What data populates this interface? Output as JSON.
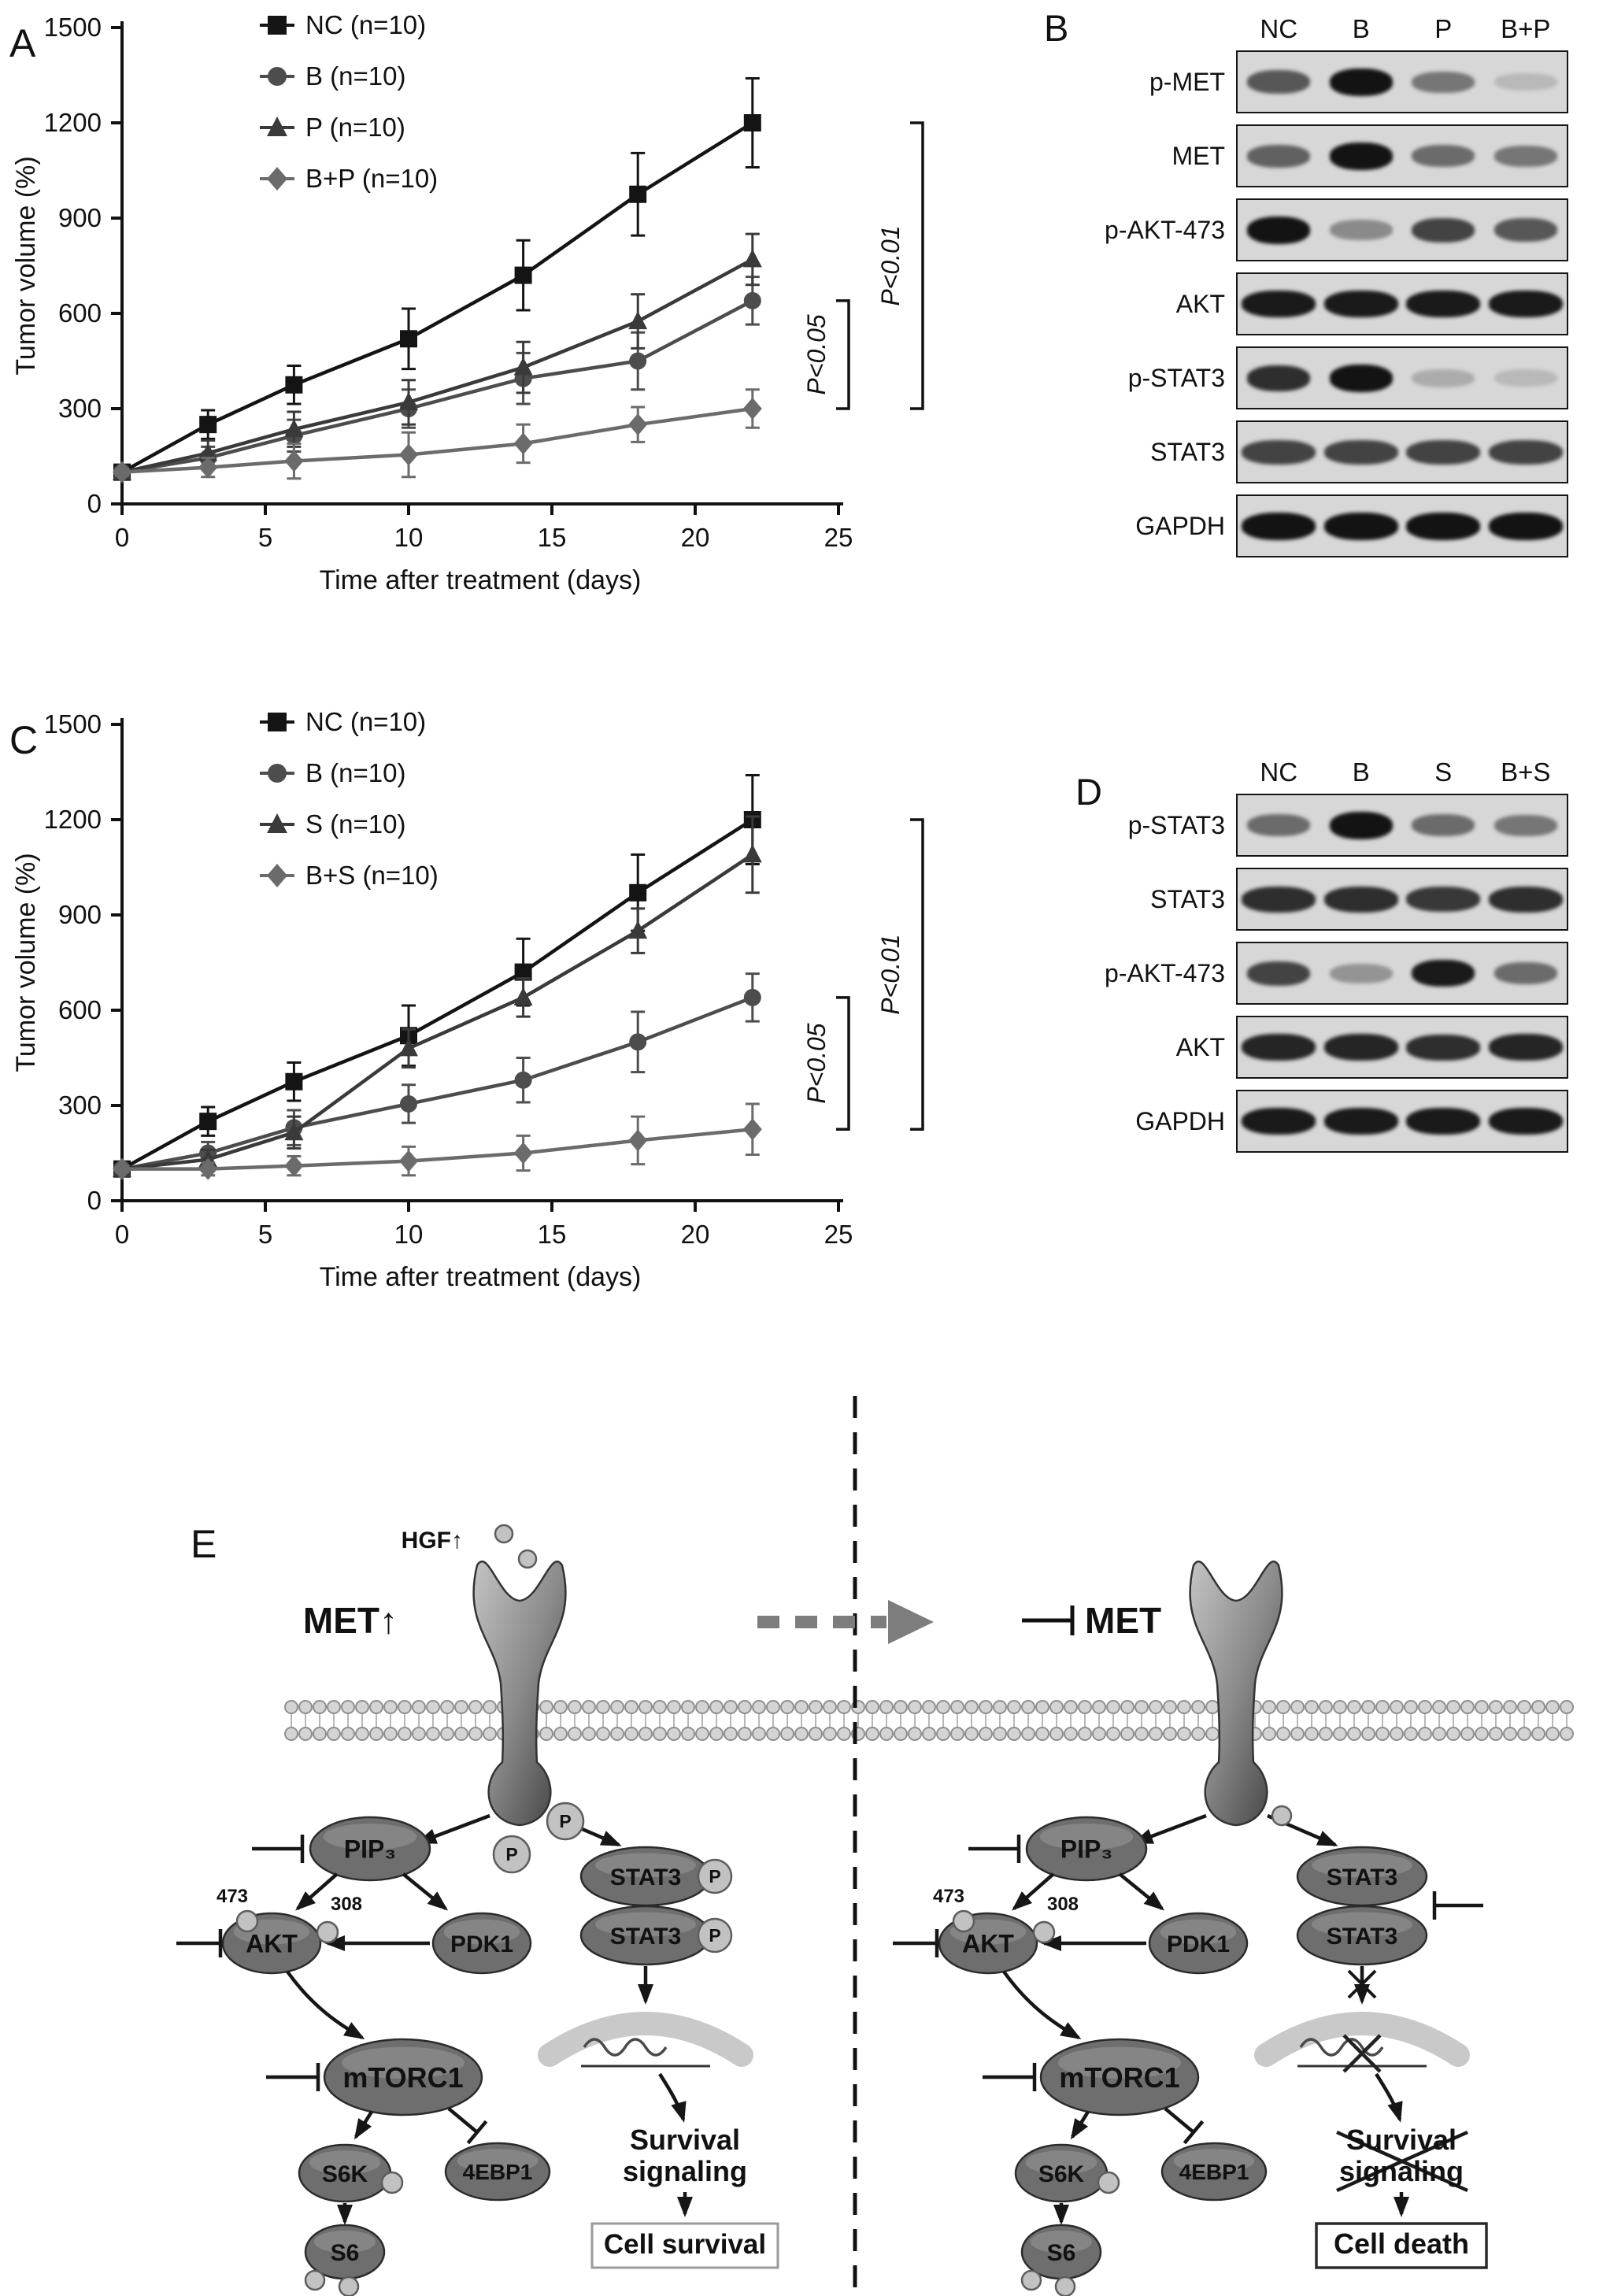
{
  "panels": {
    "A": {
      "label": "A"
    },
    "B": {
      "label": "B"
    },
    "C": {
      "label": "C"
    },
    "D": {
      "label": "D"
    },
    "E": {
      "label": "E"
    }
  },
  "chart_data": [
    {
      "id": "A",
      "type": "line",
      "xlabel": "Time after treatment (days)",
      "ylabel": "Tumor volume (%)",
      "xlim": [
        0,
        25
      ],
      "ylim": [
        0,
        1500
      ],
      "xticks": [
        0,
        5,
        10,
        15,
        20,
        25
      ],
      "yticks": [
        0,
        300,
        600,
        900,
        1200,
        1500
      ],
      "x": [
        0,
        3,
        6,
        10,
        14,
        18,
        22
      ],
      "grid": false,
      "legend_position": "top-left",
      "series": [
        {
          "name": "NC (n=10)",
          "marker": "square",
          "color": "#141414",
          "values": [
            100,
            250,
            375,
            520,
            720,
            975,
            1200
          ],
          "errors": [
            12,
            45,
            60,
            95,
            110,
            130,
            140
          ]
        },
        {
          "name": "B (n=10)",
          "marker": "circle",
          "color": "#4d4d4d",
          "values": [
            100,
            145,
            215,
            300,
            395,
            450,
            640
          ],
          "errors": [
            12,
            35,
            50,
            60,
            80,
            90,
            75
          ]
        },
        {
          "name": "P (n=10)",
          "marker": "triangle",
          "color": "#3a3a3a",
          "values": [
            100,
            160,
            235,
            320,
            430,
            575,
            770
          ],
          "errors": [
            12,
            40,
            55,
            70,
            80,
            85,
            80
          ]
        },
        {
          "name": "B+P (n=10)",
          "marker": "diamond",
          "color": "#6b6b6b",
          "values": [
            100,
            115,
            135,
            155,
            190,
            250,
            300
          ],
          "errors": [
            12,
            30,
            55,
            70,
            60,
            55,
            60
          ]
        }
      ],
      "significance": [
        {
          "label": "P<0.01",
          "from_series": 0,
          "to_series": 3
        },
        {
          "label": "P<0.05",
          "from_series": 1,
          "to_series": 3
        }
      ]
    },
    {
      "id": "C",
      "type": "line",
      "xlabel": "Time after treatment (days)",
      "ylabel": "Tumor volume (%)",
      "xlim": [
        0,
        25
      ],
      "ylim": [
        0,
        1500
      ],
      "xticks": [
        0,
        5,
        10,
        15,
        20,
        25
      ],
      "yticks": [
        0,
        300,
        600,
        900,
        1200,
        1500
      ],
      "x": [
        0,
        3,
        6,
        10,
        14,
        18,
        22
      ],
      "grid": false,
      "legend_position": "top-left",
      "series": [
        {
          "name": "NC (n=10)",
          "marker": "square",
          "color": "#141414",
          "values": [
            100,
            250,
            375,
            520,
            720,
            970,
            1200
          ],
          "errors": [
            12,
            45,
            60,
            95,
            105,
            120,
            140
          ]
        },
        {
          "name": "B (n=10)",
          "marker": "circle",
          "color": "#4d4d4d",
          "values": [
            100,
            150,
            230,
            305,
            380,
            500,
            640
          ],
          "errors": [
            12,
            35,
            55,
            60,
            70,
            95,
            75
          ]
        },
        {
          "name": "S (n=10)",
          "marker": "triangle",
          "color": "#3a3a3a",
          "values": [
            100,
            130,
            215,
            480,
            640,
            850,
            1090
          ],
          "errors": [
            12,
            30,
            50,
            60,
            60,
            70,
            120
          ]
        },
        {
          "name": "B+S (n=10)",
          "marker": "diamond",
          "color": "#6b6b6b",
          "values": [
            100,
            100,
            110,
            125,
            150,
            190,
            225
          ],
          "errors": [
            10,
            20,
            30,
            45,
            55,
            75,
            80
          ]
        }
      ],
      "significance": [
        {
          "label": "P<0.01",
          "from_series": 0,
          "to_series": 3
        },
        {
          "label": "P<0.05",
          "from_series": 1,
          "to_series": 3
        }
      ]
    }
  ],
  "blots": [
    {
      "id": "B",
      "columns": [
        "NC",
        "B",
        "P",
        "B+P"
      ],
      "rows": [
        {
          "label": "p-MET",
          "bands": [
            0.6,
            0.95,
            0.45,
            0.12
          ],
          "wide": false
        },
        {
          "label": "MET",
          "bands": [
            0.55,
            0.95,
            0.5,
            0.45
          ],
          "wide": false
        },
        {
          "label": "p-AKT-473",
          "bands": [
            0.95,
            0.35,
            0.7,
            0.6
          ],
          "wide": false
        },
        {
          "label": "AKT",
          "bands": [
            0.9,
            0.9,
            0.9,
            0.9
          ],
          "wide": true
        },
        {
          "label": "p-STAT3",
          "bands": [
            0.8,
            0.95,
            0.18,
            0.12
          ],
          "wide": false
        },
        {
          "label": "STAT3",
          "bands": [
            0.7,
            0.7,
            0.7,
            0.7
          ],
          "wide": true
        },
        {
          "label": "GAPDH",
          "bands": [
            0.95,
            0.95,
            0.95,
            0.95
          ],
          "wide": true
        }
      ]
    },
    {
      "id": "D",
      "columns": [
        "NC",
        "B",
        "S",
        "B+S"
      ],
      "rows": [
        {
          "label": "p-STAT3",
          "bands": [
            0.5,
            0.95,
            0.5,
            0.45
          ],
          "wide": false
        },
        {
          "label": "STAT3",
          "bands": [
            0.8,
            0.8,
            0.75,
            0.8
          ],
          "wide": true
        },
        {
          "label": "p-AKT-473",
          "bands": [
            0.7,
            0.3,
            0.9,
            0.5
          ],
          "wide": false
        },
        {
          "label": "AKT",
          "bands": [
            0.85,
            0.85,
            0.8,
            0.85
          ],
          "wide": true
        },
        {
          "label": "GAPDH",
          "bands": [
            0.9,
            0.9,
            0.9,
            0.9
          ],
          "wide": true
        }
      ]
    }
  ],
  "pathway": {
    "hgf": "HGF↑",
    "left": {
      "met": "MET↑",
      "pip3": "PIP₃",
      "akt": "AKT",
      "site_473": "473",
      "site_308": "308",
      "pdk1": "PDK1",
      "mtorc1": "mTORC1",
      "s6k": "S6K",
      "e4ebp1": "4EBP1",
      "s6": "S6",
      "stat3": "STAT3",
      "p": "P",
      "survival_line1": "Survival",
      "survival_line2": "signaling",
      "outcome": "Cell survival"
    },
    "right": {
      "met": "MET",
      "pip3": "PIP₃",
      "akt": "AKT",
      "site_473": "473",
      "site_308": "308",
      "pdk1": "PDK1",
      "mtorc1": "mTORC1",
      "s6k": "S6K",
      "e4ebp1": "4EBP1",
      "s6": "S6",
      "stat3": "STAT3",
      "survival_line1": "Survival",
      "survival_line2": "signaling",
      "outcome": "Cell death"
    }
  }
}
